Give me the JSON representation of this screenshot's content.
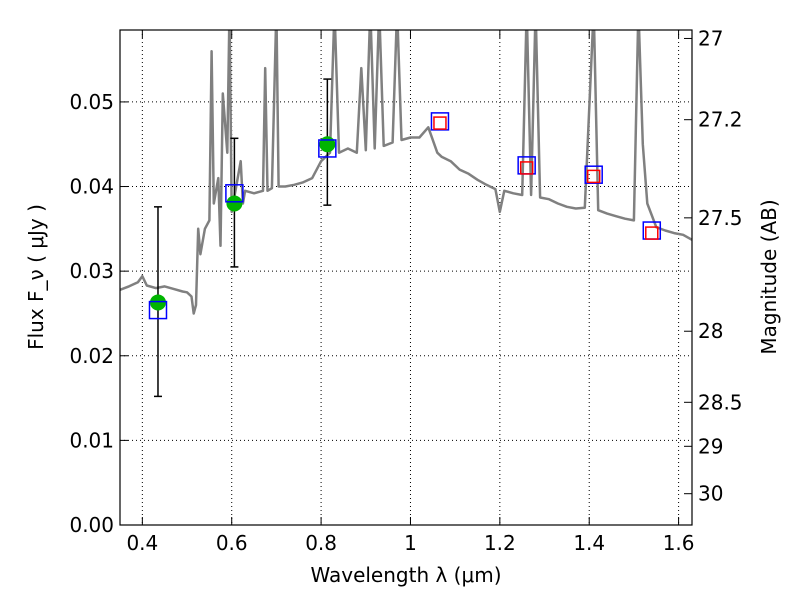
{
  "chart_data": {
    "type": "line",
    "xlabel": "Wavelength  λ (μm)",
    "ylabel_left": "Flux  F_ν  ( μJy )",
    "ylabel_right": "Magnitude (AB)",
    "xlim": [
      0.35,
      1.63
    ],
    "ylim": [
      0.0,
      0.0585
    ],
    "x_ticks": [
      0.4,
      0.6,
      0.8,
      1.0,
      1.2,
      1.4,
      1.6
    ],
    "x_tick_labels": [
      "0.4",
      "0.6",
      "0.8",
      "1",
      "1.2",
      "1.4",
      "1.6"
    ],
    "y_ticks": [
      0.0,
      0.01,
      0.02,
      0.03,
      0.04,
      0.05
    ],
    "y_tick_labels": [
      "0.00",
      "0.01",
      "0.02",
      "0.03",
      "0.04",
      "0.05"
    ],
    "right_ticks": [
      {
        "label": "27",
        "flux": 0.0575
      },
      {
        "label": "27.2",
        "flux": 0.0479
      },
      {
        "label": "27.5",
        "flux": 0.0363
      },
      {
        "label": "28",
        "flux": 0.0229
      },
      {
        "label": "28.5",
        "flux": 0.0145
      },
      {
        "label": "29",
        "flux": 0.0093
      },
      {
        "label": "30",
        "flux": 0.0037
      }
    ],
    "grid": true,
    "series": [
      {
        "kind": "line",
        "color": "#808080",
        "points": [
          [
            0.35,
            0.0278
          ],
          [
            0.37,
            0.0282
          ],
          [
            0.39,
            0.0287
          ],
          [
            0.4,
            0.0294
          ],
          [
            0.41,
            0.0283
          ],
          [
            0.43,
            0.028
          ],
          [
            0.45,
            0.0282
          ],
          [
            0.47,
            0.0279
          ],
          [
            0.49,
            0.0276
          ],
          [
            0.5,
            0.0275
          ],
          [
            0.51,
            0.027
          ],
          [
            0.515,
            0.025
          ],
          [
            0.52,
            0.026
          ],
          [
            0.525,
            0.035
          ],
          [
            0.53,
            0.032
          ],
          [
            0.54,
            0.035
          ],
          [
            0.55,
            0.036
          ],
          [
            0.555,
            0.056
          ],
          [
            0.56,
            0.038
          ],
          [
            0.57,
            0.041
          ],
          [
            0.575,
            0.033
          ],
          [
            0.58,
            0.051
          ],
          [
            0.59,
            0.044
          ],
          [
            0.595,
            0.061
          ],
          [
            0.6,
            0.037
          ],
          [
            0.61,
            0.04
          ],
          [
            0.62,
            0.043
          ],
          [
            0.625,
            0.038
          ],
          [
            0.63,
            0.0395
          ],
          [
            0.65,
            0.0392
          ],
          [
            0.67,
            0.0395
          ],
          [
            0.675,
            0.054
          ],
          [
            0.68,
            0.0395
          ],
          [
            0.69,
            0.0398
          ],
          [
            0.7,
            0.061
          ],
          [
            0.705,
            0.04
          ],
          [
            0.72,
            0.04
          ],
          [
            0.74,
            0.0402
          ],
          [
            0.76,
            0.0405
          ],
          [
            0.78,
            0.041
          ],
          [
            0.8,
            0.043
          ],
          [
            0.82,
            0.044
          ],
          [
            0.83,
            0.061
          ],
          [
            0.84,
            0.044
          ],
          [
            0.86,
            0.0445
          ],
          [
            0.88,
            0.044
          ],
          [
            0.89,
            0.054
          ],
          [
            0.9,
            0.0443
          ],
          [
            0.91,
            0.061
          ],
          [
            0.92,
            0.0445
          ],
          [
            0.93,
            0.061
          ],
          [
            0.94,
            0.0448
          ],
          [
            0.96,
            0.0452
          ],
          [
            0.97,
            0.061
          ],
          [
            0.98,
            0.0455
          ],
          [
            1.0,
            0.0458
          ],
          [
            1.02,
            0.0458
          ],
          [
            1.04,
            0.047
          ],
          [
            1.06,
            0.044
          ],
          [
            1.07,
            0.0435
          ],
          [
            1.09,
            0.043
          ],
          [
            1.11,
            0.042
          ],
          [
            1.13,
            0.0415
          ],
          [
            1.15,
            0.0408
          ],
          [
            1.17,
            0.0402
          ],
          [
            1.19,
            0.0397
          ],
          [
            1.2,
            0.037
          ],
          [
            1.21,
            0.0395
          ],
          [
            1.23,
            0.0392
          ],
          [
            1.25,
            0.039
          ],
          [
            1.26,
            0.061
          ],
          [
            1.27,
            0.039
          ],
          [
            1.28,
            0.061
          ],
          [
            1.29,
            0.0387
          ],
          [
            1.31,
            0.0385
          ],
          [
            1.33,
            0.038
          ],
          [
            1.35,
            0.0376
          ],
          [
            1.37,
            0.0374
          ],
          [
            1.39,
            0.0375
          ],
          [
            1.41,
            0.061
          ],
          [
            1.42,
            0.0372
          ],
          [
            1.44,
            0.0368
          ],
          [
            1.46,
            0.0365
          ],
          [
            1.48,
            0.0362
          ],
          [
            1.5,
            0.036
          ],
          [
            1.51,
            0.061
          ],
          [
            1.52,
            0.045
          ],
          [
            1.53,
            0.038
          ],
          [
            1.55,
            0.0352
          ],
          [
            1.57,
            0.0348
          ],
          [
            1.59,
            0.0345
          ],
          [
            1.61,
            0.0343
          ],
          [
            1.63,
            0.0337
          ]
        ]
      },
      {
        "kind": "errorbar",
        "color": "#000000",
        "points": [
          {
            "x": 0.435,
            "ylow": 0.0152,
            "yhigh": 0.0376
          },
          {
            "x": 0.606,
            "ylow": 0.0305,
            "yhigh": 0.0457
          },
          {
            "x": 0.814,
            "ylow": 0.0378,
            "yhigh": 0.0527
          }
        ]
      },
      {
        "kind": "scatter",
        "marker": "circle",
        "color": "#00b400",
        "points": [
          [
            0.435,
            0.0263
          ],
          [
            0.606,
            0.038
          ],
          [
            0.814,
            0.045
          ]
        ]
      },
      {
        "kind": "scatter",
        "marker": "square-open",
        "color": "#0000ff",
        "points": [
          [
            0.435,
            0.0254
          ],
          [
            0.606,
            0.0392
          ],
          [
            0.814,
            0.0445
          ],
          [
            1.066,
            0.0477
          ],
          [
            1.26,
            0.0425
          ],
          [
            1.41,
            0.0414
          ],
          [
            1.54,
            0.0348
          ]
        ]
      },
      {
        "kind": "scatter",
        "marker": "square-open",
        "color": "#ff0000",
        "points": [
          [
            1.066,
            0.0475
          ],
          [
            1.26,
            0.0422
          ],
          [
            1.41,
            0.0412
          ],
          [
            1.54,
            0.0345
          ]
        ]
      }
    ]
  }
}
